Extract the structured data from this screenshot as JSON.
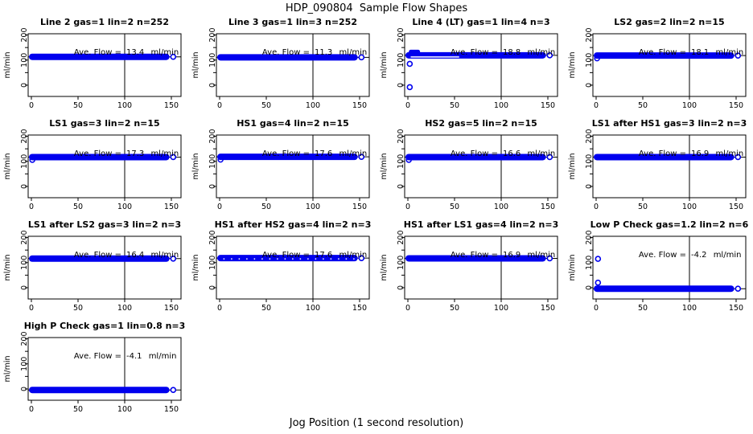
{
  "main_title": "HDP_090804  Sample Flow Shapes",
  "x_axis_title": "Jog Position (1 second resolution)",
  "chart_data": {
    "type": "scatter",
    "grid": {
      "rows": 4,
      "cols": 4
    },
    "axes": {
      "xlim": [
        -3,
        160
      ],
      "ylim": [
        -45,
        205
      ],
      "x_ticks": [
        0,
        50,
        100,
        150
      ],
      "y_major_ticks": [
        0,
        100,
        200
      ],
      "y_tick_labels": [
        "0",
        "100",
        "200"
      ],
      "y_minor_ticks": [
        50,
        150
      ],
      "ylabel": "ml/min",
      "ref_vline_x": 100
    },
    "style": {
      "point_color": "#0000EE",
      "axis_color": "#000000",
      "ref_line_color": "#000000",
      "background": "#ffffff"
    },
    "annotation_label": "Ave. Flow =",
    "annotation_units": "ml/min",
    "subplots": [
      {
        "title": "Line 2 gas=1 lin=2 n=252",
        "ave_flow": "13.4",
        "band_y": 113,
        "band_x": [
          0,
          152
        ],
        "outliers": [],
        "features": []
      },
      {
        "title": "Line 3 gas=1 lin=3 n=252",
        "ave_flow": "11.3",
        "band_y": 111,
        "band_x": [
          0,
          152
        ],
        "outliers": [],
        "features": []
      },
      {
        "title": "Line 4 (LT) gas=1 lin=4 n=3",
        "ave_flow": "18.8",
        "band_y": 119,
        "band_x": [
          0,
          152
        ],
        "outliers": [
          [
            2,
            85
          ],
          [
            2,
            -8
          ]
        ],
        "features": [
          "start_bump",
          "white_streak"
        ]
      },
      {
        "title": "LS2 gas=2 lin=2 n=15",
        "ave_flow": "18.1",
        "band_y": 118,
        "band_x": [
          0,
          152
        ],
        "outliers": [],
        "features": [
          "left_notch"
        ]
      },
      {
        "title": "LS1 gas=3 lin=2 n=15",
        "ave_flow": "17.3",
        "band_y": 117,
        "band_x": [
          0,
          152
        ],
        "outliers": [],
        "features": [
          "left_notch"
        ]
      },
      {
        "title": "HS1 gas=4 lin=2 n=15",
        "ave_flow": "17.6",
        "band_y": 118,
        "band_x": [
          0,
          152
        ],
        "outliers": [],
        "features": [
          "left_notch"
        ]
      },
      {
        "title": "HS2 gas=5 lin=2 n=15",
        "ave_flow": "16.6",
        "band_y": 117,
        "band_x": [
          0,
          152
        ],
        "outliers": [],
        "features": [
          "left_notch"
        ]
      },
      {
        "title": "LS1 after HS1 gas=3 lin=2 n=3",
        "ave_flow": "16.9",
        "band_y": 117,
        "band_x": [
          0,
          152
        ],
        "outliers": [],
        "features": []
      },
      {
        "title": "LS1 after LS2 gas=3 lin=2 n=3",
        "ave_flow": "16.4",
        "band_y": 116,
        "band_x": [
          0,
          152
        ],
        "outliers": [],
        "features": []
      },
      {
        "title": "HS1 after HS2 gas=4 lin=2 n=3",
        "ave_flow": "17.6",
        "band_y": 118,
        "band_x": [
          0,
          152
        ],
        "outliers": [],
        "features": [
          "speckled"
        ]
      },
      {
        "title": "HS1 after LS1 gas=4 lin=2 n=3",
        "ave_flow": "16.9",
        "band_y": 117,
        "band_x": [
          0,
          152
        ],
        "outliers": [],
        "features": []
      },
      {
        "title": "Low P Check gas=1.2 lin=2 n=6",
        "ave_flow": "-4.2",
        "band_y": -4,
        "band_x": [
          0,
          152
        ],
        "outliers": [
          [
            2,
            115
          ],
          [
            2,
            20
          ]
        ],
        "features": []
      },
      {
        "title": "High P Check gas=1 lin=0.8 n=3",
        "ave_flow": "-4.1",
        "band_y": -4,
        "band_x": [
          0,
          152
        ],
        "outliers": [],
        "features": []
      }
    ]
  }
}
